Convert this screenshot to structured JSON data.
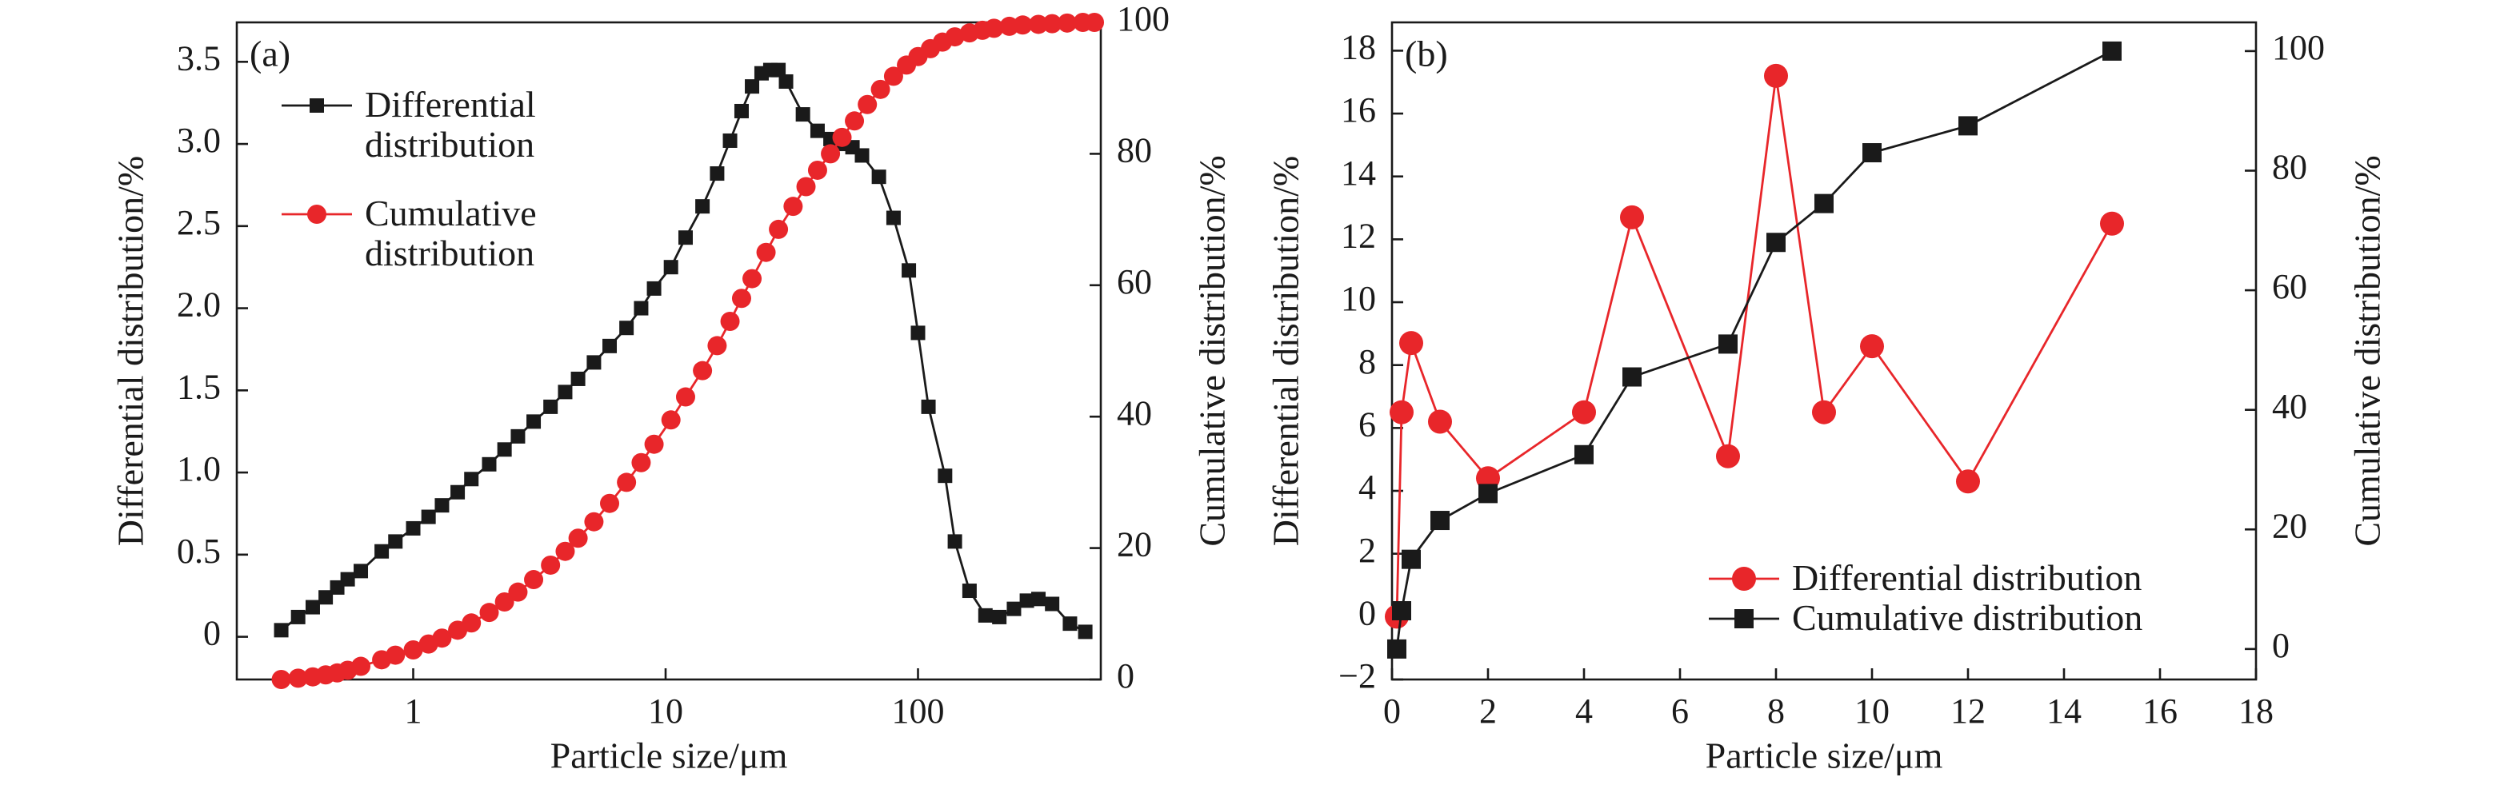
{
  "chart_data": [
    {
      "type": "line",
      "label": "(a)",
      "xlabel": "Particle size/μm",
      "ylabel": "Differential distribution/%",
      "y2label": "Cumulative distribution/%",
      "xscale": "log",
      "xlim": [
        0.2,
        530
      ],
      "xticks": [
        1,
        10,
        100
      ],
      "ylim": [
        -0.26,
        3.74
      ],
      "yticks": [
        0,
        0.5,
        {
          "value": 1,
          "label": "1.0"
        },
        1.5,
        {
          "value": 2,
          "label": "2.0"
        },
        2.5,
        {
          "value": 3,
          "label": "3.0"
        },
        3.5
      ],
      "y2lim": [
        0,
        100
      ],
      "y2ticks": [
        0,
        20,
        40,
        60,
        80,
        100
      ],
      "legend": "upper left",
      "series": [
        {
          "name": "Differential distribution",
          "color": "#1a1a1a",
          "marker": "square",
          "x": [
            0.3,
            0.35,
            0.4,
            0.45,
            0.5,
            0.55,
            0.62,
            0.75,
            0.85,
            1,
            1.15,
            1.3,
            1.5,
            1.7,
            2,
            2.3,
            2.6,
            3,
            3.5,
            4,
            4.5,
            5.2,
            6,
            7,
            8,
            9,
            10.5,
            12,
            14,
            16,
            18,
            20,
            22,
            24,
            26,
            28,
            30,
            35,
            40,
            45,
            50,
            55,
            60,
            70,
            80,
            92,
            100,
            110,
            128,
            140,
            160,
            185,
            210,
            240,
            270,
            300,
            340,
            400,
            460
          ],
          "values": [
            0.04,
            0.12,
            0.18,
            0.24,
            0.3,
            0.35,
            0.4,
            0.52,
            0.58,
            0.66,
            0.73,
            0.8,
            0.88,
            0.96,
            1.05,
            1.14,
            1.22,
            1.31,
            1.4,
            1.49,
            1.57,
            1.67,
            1.77,
            1.88,
            2.0,
            2.12,
            2.25,
            2.43,
            2.62,
            2.82,
            3.02,
            3.2,
            3.35,
            3.43,
            3.45,
            3.45,
            3.38,
            3.18,
            3.08,
            3.03,
            3.0,
            2.98,
            2.93,
            2.8,
            2.55,
            2.23,
            1.85,
            1.4,
            0.98,
            0.58,
            0.28,
            0.13,
            0.12,
            0.17,
            0.22,
            0.23,
            0.2,
            0.08,
            0.03
          ]
        },
        {
          "name": "Cumulative distribution",
          "color": "#e8262a",
          "marker": "circle",
          "axis": "y2",
          "x": [
            0.3,
            0.35,
            0.4,
            0.45,
            0.5,
            0.55,
            0.62,
            0.75,
            0.85,
            1,
            1.15,
            1.3,
            1.5,
            1.7,
            2,
            2.3,
            2.6,
            3,
            3.5,
            4,
            4.5,
            5.2,
            6,
            7,
            8,
            9,
            10.5,
            12,
            14,
            16,
            18,
            20,
            22,
            25,
            28,
            32,
            36,
            40,
            45,
            50,
            56,
            63,
            71,
            80,
            90,
            100,
            112,
            125,
            140,
            160,
            180,
            200,
            230,
            260,
            300,
            340,
            390,
            450,
            500
          ],
          "values": [
            0,
            0.2,
            0.4,
            0.7,
            1.0,
            1.4,
            2.0,
            3.0,
            3.7,
            4.5,
            5.4,
            6.3,
            7.5,
            8.6,
            10.2,
            11.8,
            13.3,
            15.2,
            17.4,
            19.5,
            21.5,
            24,
            26.8,
            30,
            33,
            35.8,
            39.5,
            43,
            47,
            50.8,
            54.5,
            58,
            61,
            65,
            68.5,
            72,
            75,
            77.5,
            80,
            82.5,
            85,
            87.5,
            89.8,
            91.8,
            93.5,
            94.8,
            96,
            97,
            97.8,
            98.4,
            98.8,
            99.1,
            99.4,
            99.6,
            99.7,
            99.8,
            99.9,
            100,
            100
          ]
        }
      ]
    },
    {
      "type": "line",
      "label": "(b)",
      "xlabel": "Particle size/μm",
      "ylabel": "Differential distribution/%",
      "y2label": "Cumulative distribution/%",
      "xscale": "linear",
      "xlim": [
        0,
        18
      ],
      "xticks": [
        0,
        2,
        4,
        6,
        8,
        10,
        12,
        14,
        16,
        18
      ],
      "ylim": [
        -2,
        18.9
      ],
      "yticks": [
        {
          "value": -2,
          "label": "−2"
        },
        0,
        2,
        4,
        6,
        8,
        10,
        12,
        14,
        16,
        18
      ],
      "y2lim": [
        -5.1,
        104.8
      ],
      "y2ticks": [
        0,
        20,
        40,
        60,
        80,
        100
      ],
      "legend": "lower right",
      "series": [
        {
          "name": "Differential distribution",
          "color": "#e8262a",
          "marker": "circle",
          "x": [
            0.1,
            0.2,
            0.4,
            1,
            2,
            4,
            5,
            7,
            8,
            9,
            10,
            12,
            15
          ],
          "values": [
            0.0,
            6.5,
            8.7,
            6.2,
            4.4,
            6.5,
            12.7,
            5.1,
            17.2,
            6.5,
            8.6,
            4.3,
            12.5
          ]
        },
        {
          "name": "Cumulative distribution",
          "color": "#1a1a1a",
          "marker": "square",
          "axis": "y2",
          "x": [
            0.1,
            0.2,
            0.4,
            1,
            2,
            4,
            5,
            7,
            8,
            9,
            10,
            12,
            15
          ],
          "values": [
            0,
            6.4,
            15,
            21.5,
            26,
            32.5,
            45.5,
            51,
            68,
            74.5,
            83,
            87.5,
            100
          ]
        }
      ]
    }
  ]
}
